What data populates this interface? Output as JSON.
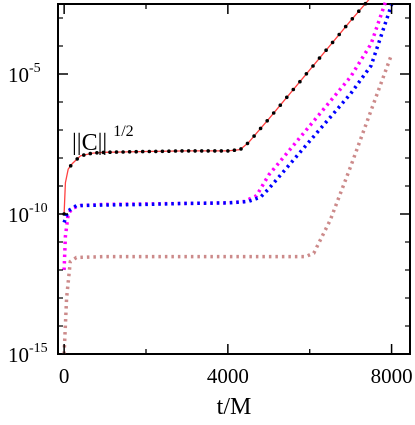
{
  "chart_data": {
    "type": "line",
    "title": "",
    "xlabel": "t/M",
    "ylabel": "",
    "annotation": {
      "base": "||C||",
      "exponent": "1/2"
    },
    "xlim": [
      -150,
      8450
    ],
    "ylim_log10": [
      -15,
      -2.5
    ],
    "y_scale": "log",
    "x_ticks": [
      0,
      4000,
      8000
    ],
    "x_tick_labels": [
      "0",
      "4000",
      "8000"
    ],
    "y_ticks": [
      {
        "base": "10",
        "exp": "-5"
      },
      {
        "base": "10",
        "exp": "-10"
      },
      {
        "base": "10",
        "exp": "-15"
      }
    ],
    "grid": false,
    "legend": "none",
    "series": [
      {
        "color": "#ff4040",
        "style": "solid",
        "x": [
          0,
          30,
          100,
          200,
          400,
          700,
          1000,
          2000,
          3000,
          4000,
          4300,
          4500,
          5000,
          6000,
          7000,
          7500,
          8000
        ],
        "y": [
          1e-10,
          1.3e-09,
          4e-09,
          6.3e-09,
          1.2e-08,
          1.5e-08,
          1.6e-08,
          1.7e-08,
          1.8e-08,
          1.8e-08,
          2e-08,
          3.5e-08,
          2.5e-07,
          1.4e-05,
          0.0008,
          0.0056,
          0.05
        ]
      },
      {
        "color": "#000000",
        "style": "dots",
        "x": [
          0,
          30,
          100,
          200,
          400,
          700,
          1000,
          2000,
          3000,
          4000,
          4300,
          4500,
          5000,
          6000,
          7000,
          7500,
          8000
        ],
        "y": [
          1e-10,
          1.3e-09,
          4e-09,
          6.3e-09,
          1.2e-08,
          1.5e-08,
          1.6e-08,
          1.7e-08,
          1.8e-08,
          1.8e-08,
          2e-08,
          3.5e-08,
          2.5e-07,
          1.4e-05,
          0.0008,
          0.0056,
          0.05
        ]
      },
      {
        "color": "#ff00ff",
        "style": "dotted",
        "x": [
          0,
          30,
          100,
          200,
          400,
          1000,
          2000,
          3000,
          4000,
          4400,
          4700,
          5000,
          6000,
          7000,
          7500,
          8000
        ],
        "y": [
          1e-12,
          1.6e-11,
          1e-10,
          1.6e-10,
          2e-10,
          2.2e-10,
          2.3e-10,
          2.4e-10,
          2.5e-10,
          2.8e-10,
          4.5e-10,
          2.5e-09,
          1.4e-07,
          8e-06,
          0.00012,
          0.016
        ]
      },
      {
        "color": "#0000ff",
        "style": "dotted",
        "x": [
          0,
          100,
          300,
          1000,
          2000,
          3000,
          4000,
          4500,
          4800,
          5000,
          6000,
          7000,
          7500,
          8000
        ],
        "y": [
          5e-11,
          1.3e-10,
          2e-10,
          2.1e-10,
          2.2e-10,
          2.4e-10,
          2.5e-10,
          2.8e-10,
          4e-10,
          8e-10,
          4e-08,
          2e-06,
          2e-05,
          0.003
        ]
      },
      {
        "color": "#cc8a8a",
        "style": "dotted",
        "x": [
          0,
          60,
          150,
          300,
          1000,
          2000,
          3000,
          4000,
          5000,
          5900,
          6100,
          6500,
          7000,
          7500,
          8000
        ],
        "y": [
          1e-15,
          1e-13,
          2e-12,
          2.8e-12,
          3e-12,
          3e-12,
          3e-12,
          3e-12,
          3e-12,
          3e-12,
          4e-12,
          6e-11,
          5e-09,
          5e-07,
          5e-05
        ]
      }
    ]
  }
}
